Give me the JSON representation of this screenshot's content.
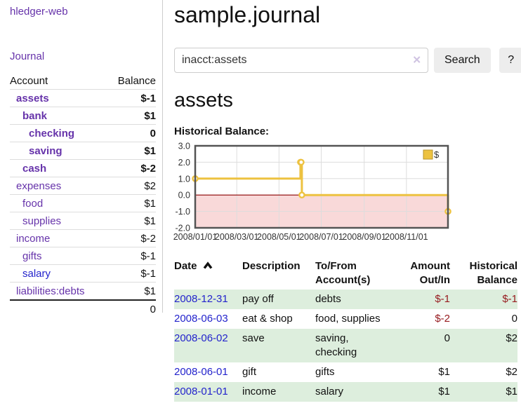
{
  "app": {
    "title": "hledger-web",
    "nav_journal": "Journal"
  },
  "sidebar": {
    "table_headers": {
      "account": "Account",
      "balance": "Balance"
    },
    "accounts": [
      {
        "name": "assets",
        "level": 1,
        "bold": true,
        "balance": "$-1",
        "balance_color": "negative"
      },
      {
        "name": "bank",
        "level": 2,
        "bold": true,
        "balance": "$1",
        "balance_color": "normal"
      },
      {
        "name": "checking",
        "level": 3,
        "bold": true,
        "balance": "0",
        "balance_color": "normal"
      },
      {
        "name": "saving",
        "level": 3,
        "bold": true,
        "balance": "$1",
        "balance_color": "normal"
      },
      {
        "name": "cash",
        "level": 2,
        "bold": true,
        "balance": "$-2",
        "balance_color": "negative"
      },
      {
        "name": "expenses",
        "level": 1,
        "bold": false,
        "balance": "$2",
        "balance_color": "normal"
      },
      {
        "name": "food",
        "level": 2,
        "bold": false,
        "balance": "$1",
        "balance_color": "normal"
      },
      {
        "name": "supplies",
        "level": 2,
        "bold": false,
        "balance": "$1",
        "balance_color": "normal"
      },
      {
        "name": "income",
        "level": 1,
        "bold": false,
        "balance": "$-2",
        "balance_color": "negative-muted"
      },
      {
        "name": "gifts",
        "level": 2,
        "bold": false,
        "balance": "$-1",
        "balance_color": "negative-muted"
      },
      {
        "name": "salary",
        "level": 2,
        "bold": false,
        "balance": "$-1",
        "balance_color": "negative-muted",
        "link_color": "blue"
      },
      {
        "name": "liabilities:debts",
        "level": 1,
        "bold": false,
        "balance": "$1",
        "balance_color": "normal"
      }
    ],
    "total": "0"
  },
  "header": {
    "title": "sample.journal"
  },
  "search": {
    "value": "inacct:assets",
    "clear_icon": "✕",
    "button": "Search",
    "help_button": "?"
  },
  "account_page": {
    "heading": "assets",
    "chart_label": "Historical Balance:"
  },
  "chart_data": {
    "type": "line",
    "title": "Historical Balance",
    "step": true,
    "series": [
      {
        "name": "$",
        "points": [
          [
            "2008-01-01",
            1
          ],
          [
            "2008-06-01",
            2
          ],
          [
            "2008-06-02",
            2
          ],
          [
            "2008-06-03",
            0
          ],
          [
            "2008-12-31",
            -1
          ]
        ]
      }
    ],
    "x_min": "2008-01-01",
    "x_max": "2008-12-31",
    "x_ticks": [
      "2008/01/01",
      "2008/03/01",
      "2008/05/01",
      "2008/07/01",
      "2008/09/01",
      "2008/11/01"
    ],
    "y_ticks": [
      "3.0",
      "2.0",
      "1.0",
      "0.0",
      "-1.0",
      "-2.0"
    ],
    "ylim": [
      -2,
      3
    ],
    "grid": true,
    "legend": {
      "label": "$",
      "position": "top-right"
    },
    "colors": {
      "line": "#edc240",
      "marker_fill": "#ffffff",
      "below_zero_fill": "#f9d9d9",
      "zero_line": "#8b0000",
      "grid": "#dddddd",
      "border": "#545454",
      "tick_text": "#333333",
      "legend_swatch_border": "#b8952f"
    }
  },
  "register_table": {
    "headers": {
      "date": "Date",
      "description": "Description",
      "tofrom": "To/From Account(s)",
      "amount": "Amount Out/In",
      "historical": "Historical Balance"
    },
    "rows": [
      {
        "date": "2008-12-31",
        "description": "pay off",
        "accounts": "debts",
        "amount": "$-1",
        "amount_color": "negative",
        "balance": "$-1",
        "balance_color": "negative",
        "shaded": true
      },
      {
        "date": "2008-06-03",
        "description": "eat & shop",
        "accounts": "food, supplies",
        "amount": "$-2",
        "amount_color": "negative",
        "balance": "0",
        "balance_color": "normal",
        "shaded": false
      },
      {
        "date": "2008-06-02",
        "description": "save",
        "accounts": "saving, checking",
        "amount": "0",
        "amount_color": "normal",
        "balance": "$2",
        "balance_color": "normal",
        "shaded": true
      },
      {
        "date": "2008-06-01",
        "description": "gift",
        "accounts": "gifts",
        "amount": "$1",
        "amount_color": "normal",
        "balance": "$2",
        "balance_color": "normal",
        "shaded": false
      },
      {
        "date": "2008-01-01",
        "description": "income",
        "accounts": "salary",
        "amount": "$1",
        "amount_color": "normal",
        "balance": "$1",
        "balance_color": "normal",
        "shaded": true
      }
    ]
  }
}
